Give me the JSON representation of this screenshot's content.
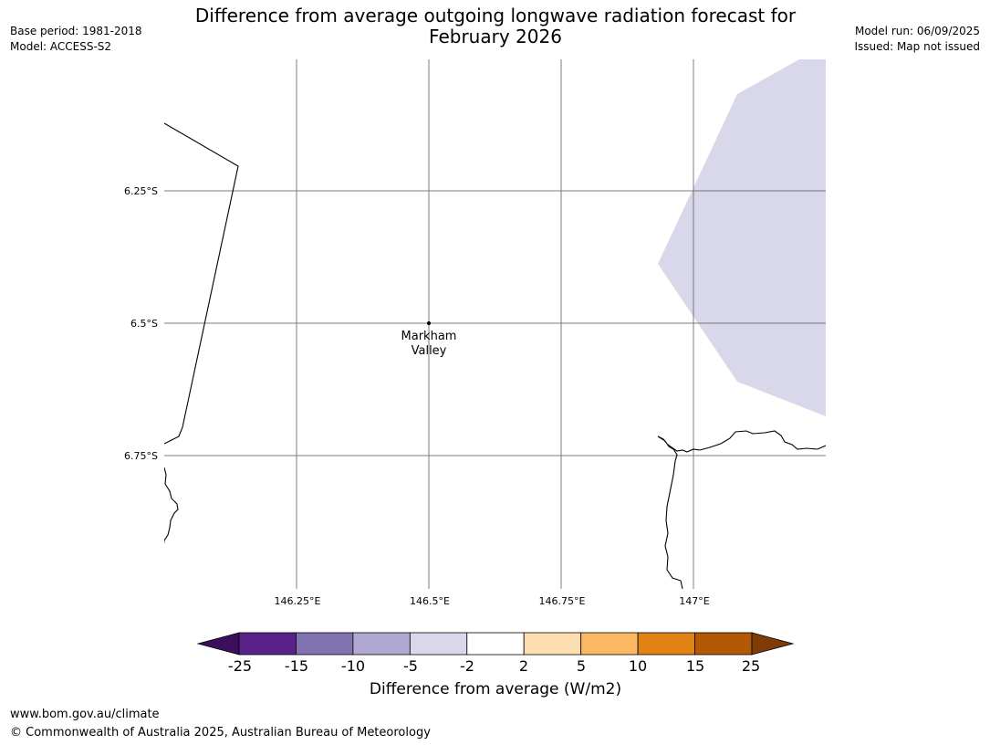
{
  "header": {
    "title_line1": "Difference from average outgoing longwave radiation forecast for",
    "title_line2": "February 2026",
    "base_period": "Base period: 1981-2018",
    "model": "Model: ACCESS-S2",
    "model_run": "Model run: 06/09/2025",
    "issued": "Issued: Map not issued"
  },
  "map": {
    "lat_labels": [
      "6.25°S",
      "6.5°S",
      "6.75°S"
    ],
    "lon_labels": [
      "146.25°E",
      "146.5°E",
      "146.75°E",
      "147°E"
    ],
    "place": {
      "name_line1": "Markham",
      "name_line2": "Valley"
    },
    "anomaly_fill_color": "#d8d8ea"
  },
  "colorbar": {
    "labels": [
      "-25",
      "-15",
      "-10",
      "-5",
      "-2",
      "2",
      "5",
      "10",
      "15",
      "25"
    ],
    "colors": [
      "#3b0f5c",
      "#5a2188",
      "#8172b0",
      "#b1a9d3",
      "#d8d8ea",
      "#ffffff",
      "#fddeb1",
      "#fbb761",
      "#e08214",
      "#b35806",
      "#7f3b08"
    ],
    "title": "Difference from average (W/m2)"
  },
  "footer": {
    "url": "www.bom.gov.au/climate",
    "copyright": "© Commonwealth of Australia 2025, Australian Bureau of Meteorology"
  }
}
